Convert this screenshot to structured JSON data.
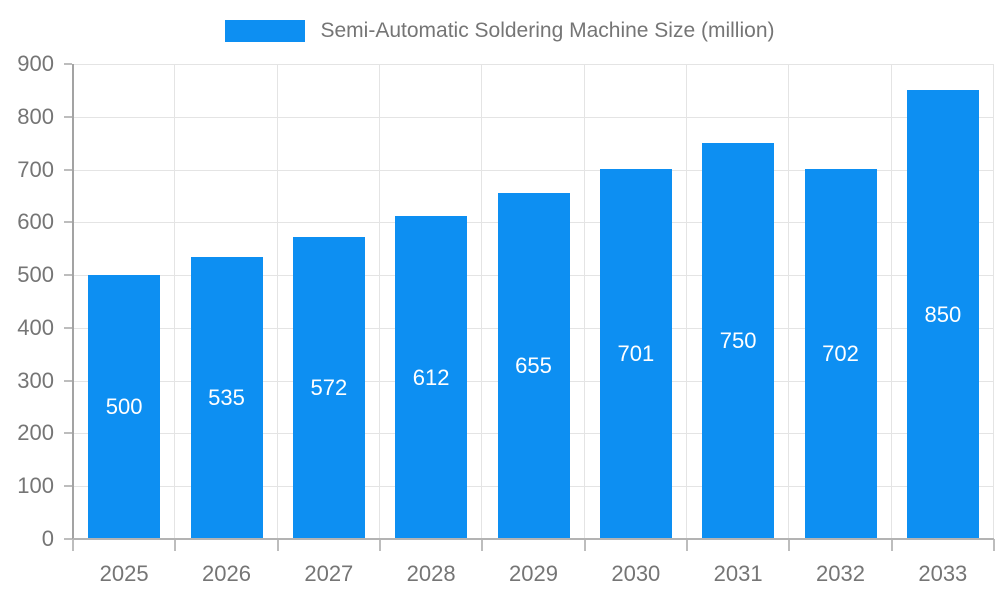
{
  "chart_data": {
    "type": "bar",
    "title": "Semi-Automatic Soldering Machine Size (million)",
    "categories": [
      "2025",
      "2026",
      "2027",
      "2028",
      "2029",
      "2030",
      "2031",
      "2032",
      "2033"
    ],
    "values": [
      500,
      535,
      572,
      612,
      655,
      701,
      750,
      702,
      850
    ],
    "xlabel": "",
    "ylabel": "",
    "ylim": [
      0,
      900
    ],
    "ytick_step": 100,
    "y_ticks": [
      "0",
      "100",
      "200",
      "300",
      "400",
      "500",
      "600",
      "700",
      "800",
      "900"
    ],
    "grid": true,
    "legend_position": "top",
    "colors": {
      "bar": "#0d8ff2",
      "grid": "#e4e4e4",
      "y_axis": "#a3a3a3",
      "x_axis": "#b3b3b3",
      "tick": "#bdbdbd",
      "axis_text": "#757575",
      "value_label": "#ffffff"
    }
  }
}
